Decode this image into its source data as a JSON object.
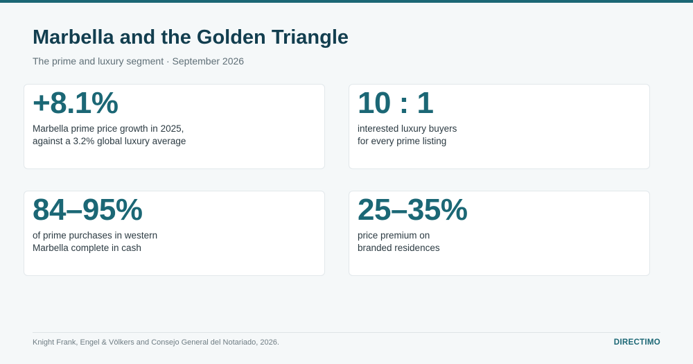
{
  "header": {
    "title": "Marbella and the Golden Triangle",
    "subtitle": "The prime and luxury segment · September 2026"
  },
  "stats": [
    {
      "value": "+8.1%",
      "lines": [
        "Marbella prime price growth in 2025,",
        "against a 3.2% global luxury average"
      ]
    },
    {
      "value": "10 : 1",
      "lines": [
        "interested luxury buyers",
        "for every prime listing"
      ]
    },
    {
      "value": "84–95%",
      "lines": [
        "of prime purchases in western",
        "Marbella complete in cash"
      ]
    },
    {
      "value": "25–35%",
      "lines": [
        "price premium on",
        "branded residences"
      ]
    }
  ],
  "footer": {
    "source": "Knight Frank, Engel & Völkers and Consejo General del Notariado, 2026.",
    "brand": "DIRECTIMO"
  }
}
